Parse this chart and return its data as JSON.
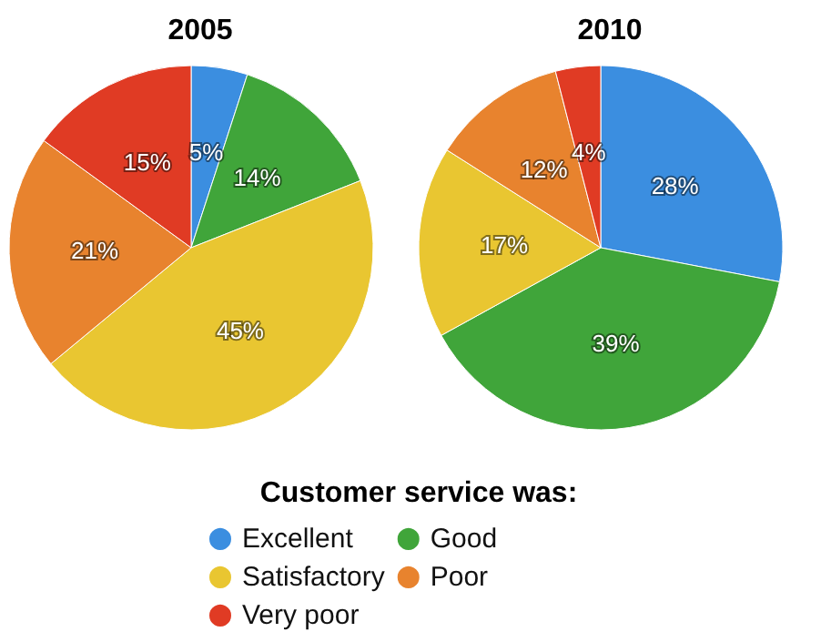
{
  "chart_data": {
    "type": "pie",
    "legend": "bottom",
    "legend_title": "Customer service was:",
    "categories": [
      "Excellent",
      "Good",
      "Satisfactory",
      "Poor",
      "Very poor"
    ],
    "colors": [
      "#3b8ee0",
      "#40a53a",
      "#e9c631",
      "#e8832e",
      "#e03b24"
    ],
    "series": [
      {
        "name": "2005",
        "values": [
          5,
          14,
          45,
          21,
          15
        ],
        "value_labels": [
          "5%",
          "14%",
          "45%",
          "21%",
          "15%"
        ]
      },
      {
        "name": "2010",
        "values": [
          28,
          39,
          17,
          12,
          4
        ],
        "value_labels": [
          "28%",
          "39%",
          "17%",
          "12%",
          "4%"
        ]
      }
    ]
  }
}
